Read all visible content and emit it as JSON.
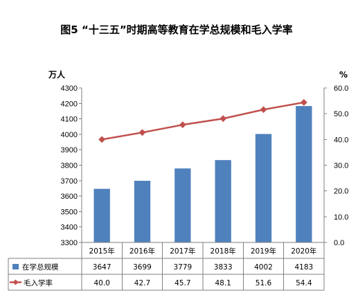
{
  "chart_data": {
    "type": "bar",
    "title": "图5 “十三五”时期高等教育在学总规模和毛入学率",
    "categories": [
      "2015年",
      "2016年",
      "2017年",
      "2018年",
      "2019年",
      "2020年"
    ],
    "left_axis": {
      "unit": "万人",
      "ylim": [
        3300,
        4300
      ],
      "ticks": [
        "3300",
        "3400",
        "3500",
        "3600",
        "3700",
        "3800",
        "3900",
        "4000",
        "4100",
        "4200",
        "4300"
      ]
    },
    "right_axis": {
      "unit": "%",
      "ylim": [
        0,
        60
      ],
      "ticks": [
        "0.0",
        "10.0",
        "20.0",
        "30.0",
        "40.0",
        "50.0",
        "60.0"
      ]
    },
    "series": [
      {
        "name": "在学总规模",
        "type": "bar",
        "axis": "left",
        "color": "#4f81bd",
        "values": [
          3647,
          3699,
          3779,
          3833,
          4002,
          4183
        ],
        "labels": [
          "3647",
          "3699",
          "3779",
          "3833",
          "4002",
          "4183"
        ]
      },
      {
        "name": "毛入学率",
        "type": "line",
        "axis": "right",
        "color": "#c0504d",
        "values": [
          40.0,
          42.7,
          45.7,
          48.1,
          51.6,
          54.4
        ],
        "labels": [
          "40.0",
          "42.7",
          "45.7",
          "48.1",
          "51.6",
          "54.4"
        ]
      }
    ],
    "data_table": true,
    "grid": false
  }
}
